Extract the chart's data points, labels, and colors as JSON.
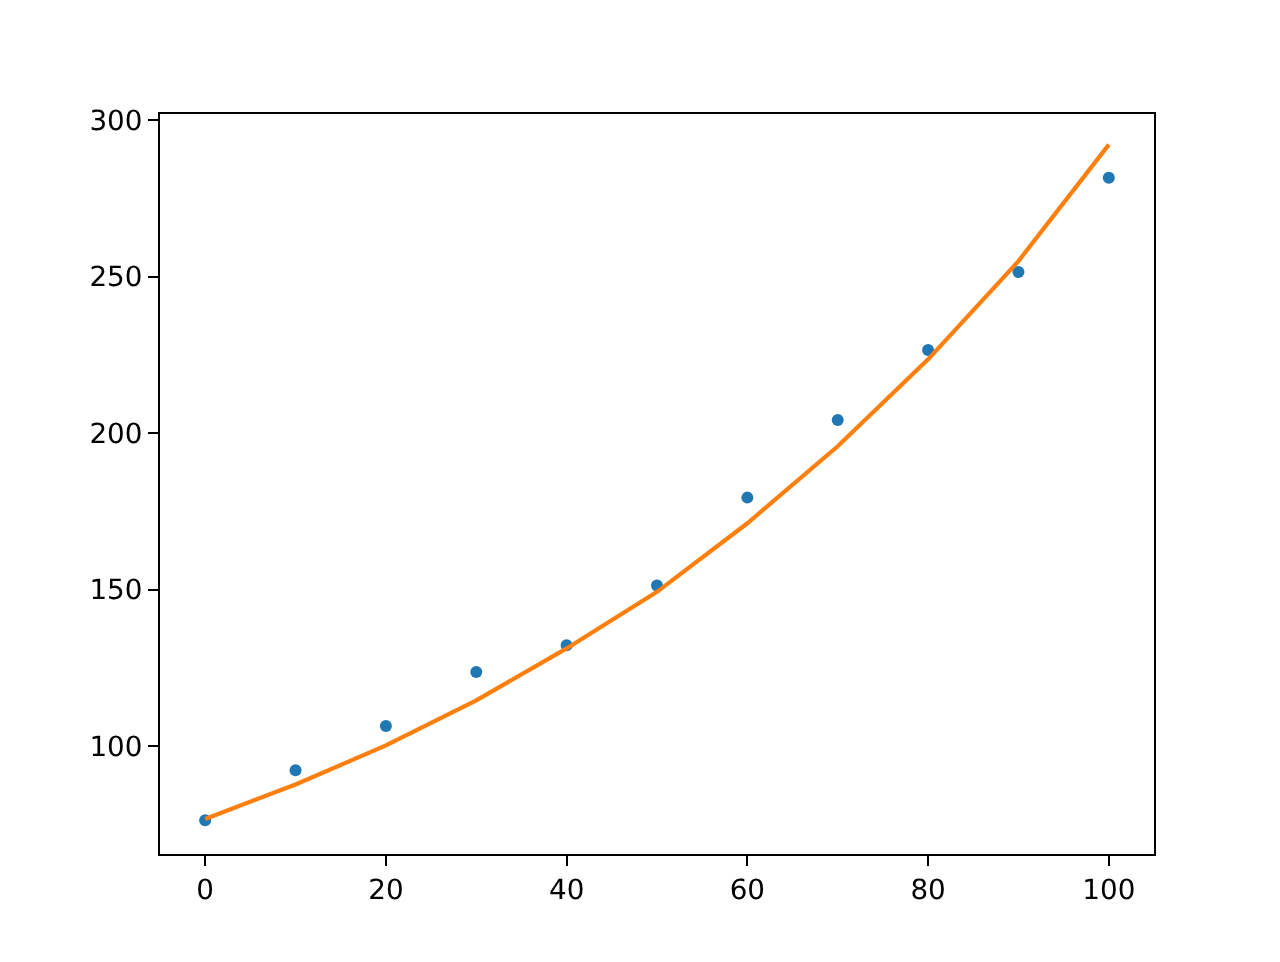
{
  "chart_data": {
    "type": "scatter",
    "xlim": [
      -5,
      105
    ],
    "ylim": [
      65.5,
      302
    ],
    "xticks": [
      0,
      20,
      40,
      60,
      80,
      100
    ],
    "yticks": [
      100,
      150,
      200,
      250,
      300
    ],
    "series": [
      {
        "color": "#1f77b4",
        "marker": "circle",
        "x": [
          0,
          10,
          20,
          30,
          40,
          50,
          60,
          70,
          80,
          90,
          100
        ],
        "values": [
          76.3,
          92.3,
          106.4,
          123.7,
          132.2,
          151.3,
          179.4,
          204.2,
          226.6,
          251.5,
          281.6
        ]
      },
      {
        "type": "line",
        "color": "#ff7f0e",
        "x": [
          0,
          10,
          20,
          30,
          40,
          50,
          60,
          70,
          80,
          90,
          100
        ],
        "values": [
          76.7,
          87.7,
          100.2,
          114.6,
          131.2,
          149.3,
          171.2,
          195.8,
          223.6,
          255,
          292.2
        ]
      }
    ]
  }
}
